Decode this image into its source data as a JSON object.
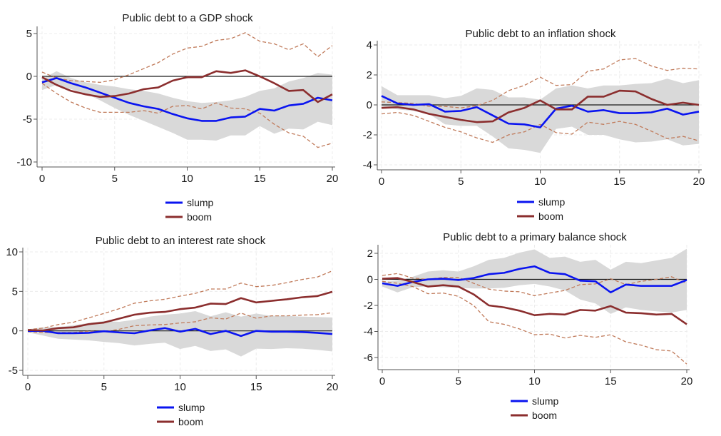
{
  "colors": {
    "slump": "#0a14f0",
    "boom": "#8b2e2e",
    "boom_ci": "#c07a5a",
    "band": "#d9d9d9",
    "zero_line": "#1a1a1a",
    "grid": "#ececec"
  },
  "chart_data": [
    {
      "type": "line",
      "title": "Public debt to a GDP shock",
      "xlabel": "",
      "ylabel": "",
      "x": [
        0,
        1,
        2,
        3,
        4,
        5,
        6,
        7,
        8,
        9,
        10,
        11,
        12,
        13,
        14,
        15,
        16,
        17,
        18,
        19,
        20
      ],
      "xlim": [
        0,
        20
      ],
      "xticks": [
        0,
        5,
        10,
        15,
        20
      ],
      "ylim": [
        -10,
        5
      ],
      "yticks": [
        5,
        0,
        -5,
        -10
      ],
      "grid": true,
      "legend_position": "bottom",
      "legend": [
        "slump",
        "boom"
      ],
      "series": [
        {
          "name": "slump",
          "values": [
            -0.7,
            -0.2,
            -0.8,
            -1.3,
            -1.9,
            -2.5,
            -3.1,
            -3.5,
            -3.8,
            -4.4,
            -4.9,
            -5.2,
            -5.2,
            -4.8,
            -4.7,
            -3.8,
            -4.0,
            -3.4,
            -3.2,
            -2.5,
            -2.8
          ]
        },
        {
          "name": "boom",
          "values": [
            -0.1,
            -1.0,
            -1.7,
            -2.1,
            -2.4,
            -2.3,
            -2.0,
            -1.5,
            -1.3,
            -0.5,
            -0.1,
            -0.1,
            0.6,
            0.4,
            0.7,
            0.0,
            -0.8,
            -1.7,
            -1.6,
            -3.0,
            -2.1
          ]
        }
      ],
      "slump_band": {
        "upper": [
          -0.3,
          0.6,
          -0.2,
          -0.7,
          -1.0,
          -1.2,
          -1.5,
          -1.7,
          -2.0,
          -2.5,
          -2.9,
          -3.1,
          -3.0,
          -2.8,
          -2.4,
          -1.7,
          -1.4,
          -0.6,
          -0.2,
          0.4,
          0.2
        ],
        "lower": [
          -1.6,
          -1.0,
          -1.5,
          -2.0,
          -2.8,
          -3.7,
          -4.5,
          -5.2,
          -5.9,
          -6.6,
          -7.4,
          -7.4,
          -7.5,
          -6.9,
          -6.9,
          -5.8,
          -6.7,
          -6.1,
          -6.2,
          -5.3,
          -5.7
        ]
      },
      "boom_ci": {
        "upper": [
          0.5,
          -0.2,
          -0.5,
          -0.6,
          -0.7,
          -0.4,
          0.2,
          0.9,
          1.6,
          2.6,
          3.3,
          3.5,
          4.2,
          4.4,
          5.1,
          4.1,
          3.8,
          3.1,
          3.8,
          2.3,
          3.6
        ],
        "lower": [
          -0.8,
          -2.0,
          -3.0,
          -3.7,
          -4.2,
          -4.2,
          -4.2,
          -4.0,
          -4.3,
          -3.5,
          -3.4,
          -3.8,
          -3.1,
          -3.7,
          -3.8,
          -4.3,
          -5.6,
          -6.6,
          -7.0,
          -8.3,
          -7.8
        ]
      }
    },
    {
      "type": "line",
      "title": "Public debt to an inflation shock",
      "xlabel": "",
      "ylabel": "",
      "x": [
        0,
        1,
        2,
        3,
        4,
        5,
        6,
        7,
        8,
        9,
        10,
        11,
        12,
        13,
        14,
        15,
        16,
        17,
        18,
        19,
        20
      ],
      "xlim": [
        0,
        20
      ],
      "xticks": [
        0,
        5,
        10,
        15,
        20
      ],
      "ylim": [
        -4,
        4
      ],
      "yticks": [
        4,
        2,
        0,
        -2,
        -4
      ],
      "grid": true,
      "legend_position": "bottom",
      "legend": [
        "slump",
        "boom"
      ],
      "series": [
        {
          "name": "slump",
          "values": [
            0.6,
            0.1,
            0.0,
            0.05,
            -0.45,
            -0.4,
            -0.15,
            -0.7,
            -1.25,
            -1.3,
            -1.5,
            -0.25,
            -0.05,
            -0.45,
            -0.35,
            -0.55,
            -0.55,
            -0.5,
            -0.25,
            -0.65,
            -0.45
          ]
        },
        {
          "name": "boom",
          "values": [
            -0.2,
            -0.15,
            -0.3,
            -0.6,
            -0.8,
            -1.0,
            -1.15,
            -1.1,
            -0.5,
            -0.2,
            0.3,
            -0.3,
            -0.3,
            0.55,
            0.55,
            0.95,
            0.9,
            0.4,
            0.0,
            0.15,
            0.0
          ]
        }
      ],
      "slump_band": {
        "upper": [
          1.25,
          0.65,
          0.65,
          0.65,
          0.45,
          0.6,
          1.1,
          1.0,
          0.5,
          0.5,
          0.35,
          1.1,
          1.3,
          1.1,
          1.3,
          1.3,
          1.4,
          1.45,
          1.75,
          1.45,
          1.65
        ],
        "lower": [
          -0.1,
          -0.3,
          -0.4,
          -0.6,
          -1.3,
          -1.4,
          -1.4,
          -2.1,
          -2.9,
          -3.0,
          -3.2,
          -1.6,
          -1.45,
          -2.0,
          -2.0,
          -2.3,
          -2.5,
          -2.45,
          -2.3,
          -2.7,
          -2.6
        ]
      },
      "boom_ci": {
        "upper": [
          0.2,
          0.15,
          0.1,
          -0.1,
          -0.1,
          -0.2,
          -0.05,
          0.3,
          0.95,
          1.3,
          1.85,
          1.3,
          1.35,
          2.25,
          2.4,
          3.0,
          3.1,
          2.6,
          2.3,
          2.45,
          2.4
        ],
        "lower": [
          -0.6,
          -0.5,
          -0.7,
          -1.1,
          -1.5,
          -1.8,
          -2.2,
          -2.5,
          -2.0,
          -1.8,
          -1.3,
          -1.85,
          -1.95,
          -1.15,
          -1.3,
          -1.1,
          -1.3,
          -1.75,
          -2.25,
          -2.1,
          -2.4
        ]
      }
    },
    {
      "type": "line",
      "title": "Public debt to an interest rate shock",
      "xlabel": "",
      "ylabel": "",
      "x": [
        0,
        1,
        2,
        3,
        4,
        5,
        6,
        7,
        8,
        9,
        10,
        11,
        12,
        13,
        14,
        15,
        16,
        17,
        18,
        19,
        20
      ],
      "xlim": [
        0,
        20
      ],
      "xticks": [
        0,
        5,
        10,
        15,
        20
      ],
      "ylim": [
        -5,
        10
      ],
      "yticks": [
        10,
        5,
        0,
        -5
      ],
      "grid": true,
      "legend_position": "bottom",
      "legend": [
        "slump",
        "boom"
      ],
      "series": [
        {
          "name": "slump",
          "values": [
            0.0,
            0.0,
            -0.3,
            -0.3,
            -0.25,
            -0.05,
            -0.2,
            -0.3,
            0.05,
            0.35,
            -0.1,
            0.25,
            -0.4,
            0.0,
            -0.65,
            0.0,
            -0.1,
            -0.1,
            -0.15,
            -0.25,
            -0.4
          ]
        },
        {
          "name": "boom",
          "values": [
            0.1,
            0.05,
            0.35,
            0.45,
            0.85,
            1.05,
            1.55,
            2.05,
            2.3,
            2.4,
            2.75,
            2.95,
            3.45,
            3.4,
            4.15,
            3.6,
            3.8,
            4.0,
            4.25,
            4.4,
            4.95
          ]
        }
      ],
      "slump_band": {
        "upper": [
          0.2,
          0.45,
          0.5,
          0.7,
          1.0,
          1.25,
          1.15,
          1.4,
          1.8,
          2.05,
          2.2,
          2.5,
          1.85,
          2.35,
          1.8,
          2.2,
          1.9,
          1.9,
          1.8,
          1.75,
          1.7
        ],
        "lower": [
          -0.2,
          -0.6,
          -1.0,
          -1.1,
          -1.2,
          -1.4,
          -1.55,
          -1.85,
          -1.65,
          -1.5,
          -2.3,
          -1.9,
          -2.55,
          -2.35,
          -3.25,
          -2.25,
          -2.3,
          -2.2,
          -2.25,
          -2.4,
          -2.6
        ]
      },
      "boom_ci": {
        "upper": [
          0.15,
          0.35,
          0.8,
          1.1,
          1.65,
          2.2,
          2.8,
          3.5,
          3.8,
          4.0,
          4.4,
          4.75,
          5.3,
          5.3,
          6.05,
          5.6,
          5.75,
          6.1,
          6.5,
          6.8,
          7.6
        ],
        "lower": [
          -0.1,
          -0.2,
          -0.2,
          -0.2,
          -0.05,
          -0.1,
          0.2,
          0.65,
          0.75,
          0.8,
          1.0,
          1.15,
          1.65,
          1.5,
          2.25,
          1.6,
          1.9,
          1.9,
          2.0,
          2.05,
          2.3
        ]
      }
    },
    {
      "type": "line",
      "title": "Public debt to a primary balance shock",
      "xlabel": "",
      "ylabel": "",
      "x": [
        0,
        1,
        2,
        3,
        4,
        5,
        6,
        7,
        8,
        9,
        10,
        11,
        12,
        13,
        14,
        15,
        16,
        17,
        18,
        19,
        20
      ],
      "xlim": [
        0,
        20
      ],
      "xticks": [
        0,
        5,
        10,
        15,
        20
      ],
      "ylim": [
        -7,
        2.5
      ],
      "yticks": [
        2,
        0,
        -2,
        -4,
        -6
      ],
      "grid": true,
      "legend_position": "bottom",
      "legend": [
        "slump",
        "boom"
      ],
      "series": [
        {
          "name": "slump",
          "values": [
            -0.3,
            -0.5,
            -0.2,
            0.0,
            0.05,
            -0.05,
            0.1,
            0.4,
            0.5,
            0.8,
            1.0,
            0.5,
            0.4,
            -0.1,
            -0.15,
            -1.0,
            -0.4,
            -0.5,
            -0.5,
            -0.5,
            -0.05
          ]
        },
        {
          "name": "boom",
          "values": [
            0.05,
            0.1,
            -0.2,
            -0.55,
            -0.45,
            -0.55,
            -1.15,
            -2.0,
            -2.15,
            -2.4,
            -2.75,
            -2.65,
            -2.7,
            -2.35,
            -2.4,
            -2.05,
            -2.55,
            -2.6,
            -2.7,
            -2.65,
            -3.45
          ]
        }
      ],
      "slump_band": {
        "upper": [
          -0.2,
          -0.1,
          0.2,
          0.6,
          0.7,
          0.6,
          1.0,
          1.5,
          1.65,
          2.05,
          2.3,
          1.65,
          1.75,
          1.35,
          1.5,
          0.75,
          1.35,
          1.25,
          1.45,
          1.65,
          2.35
        ],
        "lower": [
          -0.55,
          -1.0,
          -0.6,
          -0.55,
          -0.6,
          -0.65,
          -0.7,
          -0.7,
          -0.65,
          -0.45,
          -0.35,
          -0.55,
          -0.85,
          -1.55,
          -1.85,
          -2.65,
          -2.15,
          -2.35,
          -2.45,
          -2.55,
          -2.35
        ]
      },
      "boom_ci": {
        "upper": [
          0.3,
          0.45,
          0.1,
          0.0,
          0.15,
          0.15,
          -0.3,
          -0.75,
          -0.9,
          -0.95,
          -1.25,
          -1.05,
          -0.85,
          -0.4,
          -0.35,
          0.05,
          -0.4,
          -0.15,
          0.0,
          0.2,
          -0.3
        ],
        "lower": [
          -0.15,
          -0.3,
          -0.55,
          -1.1,
          -1.05,
          -1.3,
          -2.0,
          -3.25,
          -3.45,
          -3.8,
          -4.25,
          -4.2,
          -4.5,
          -4.3,
          -4.45,
          -4.25,
          -4.8,
          -5.05,
          -5.4,
          -5.5,
          -6.5
        ]
      }
    }
  ]
}
